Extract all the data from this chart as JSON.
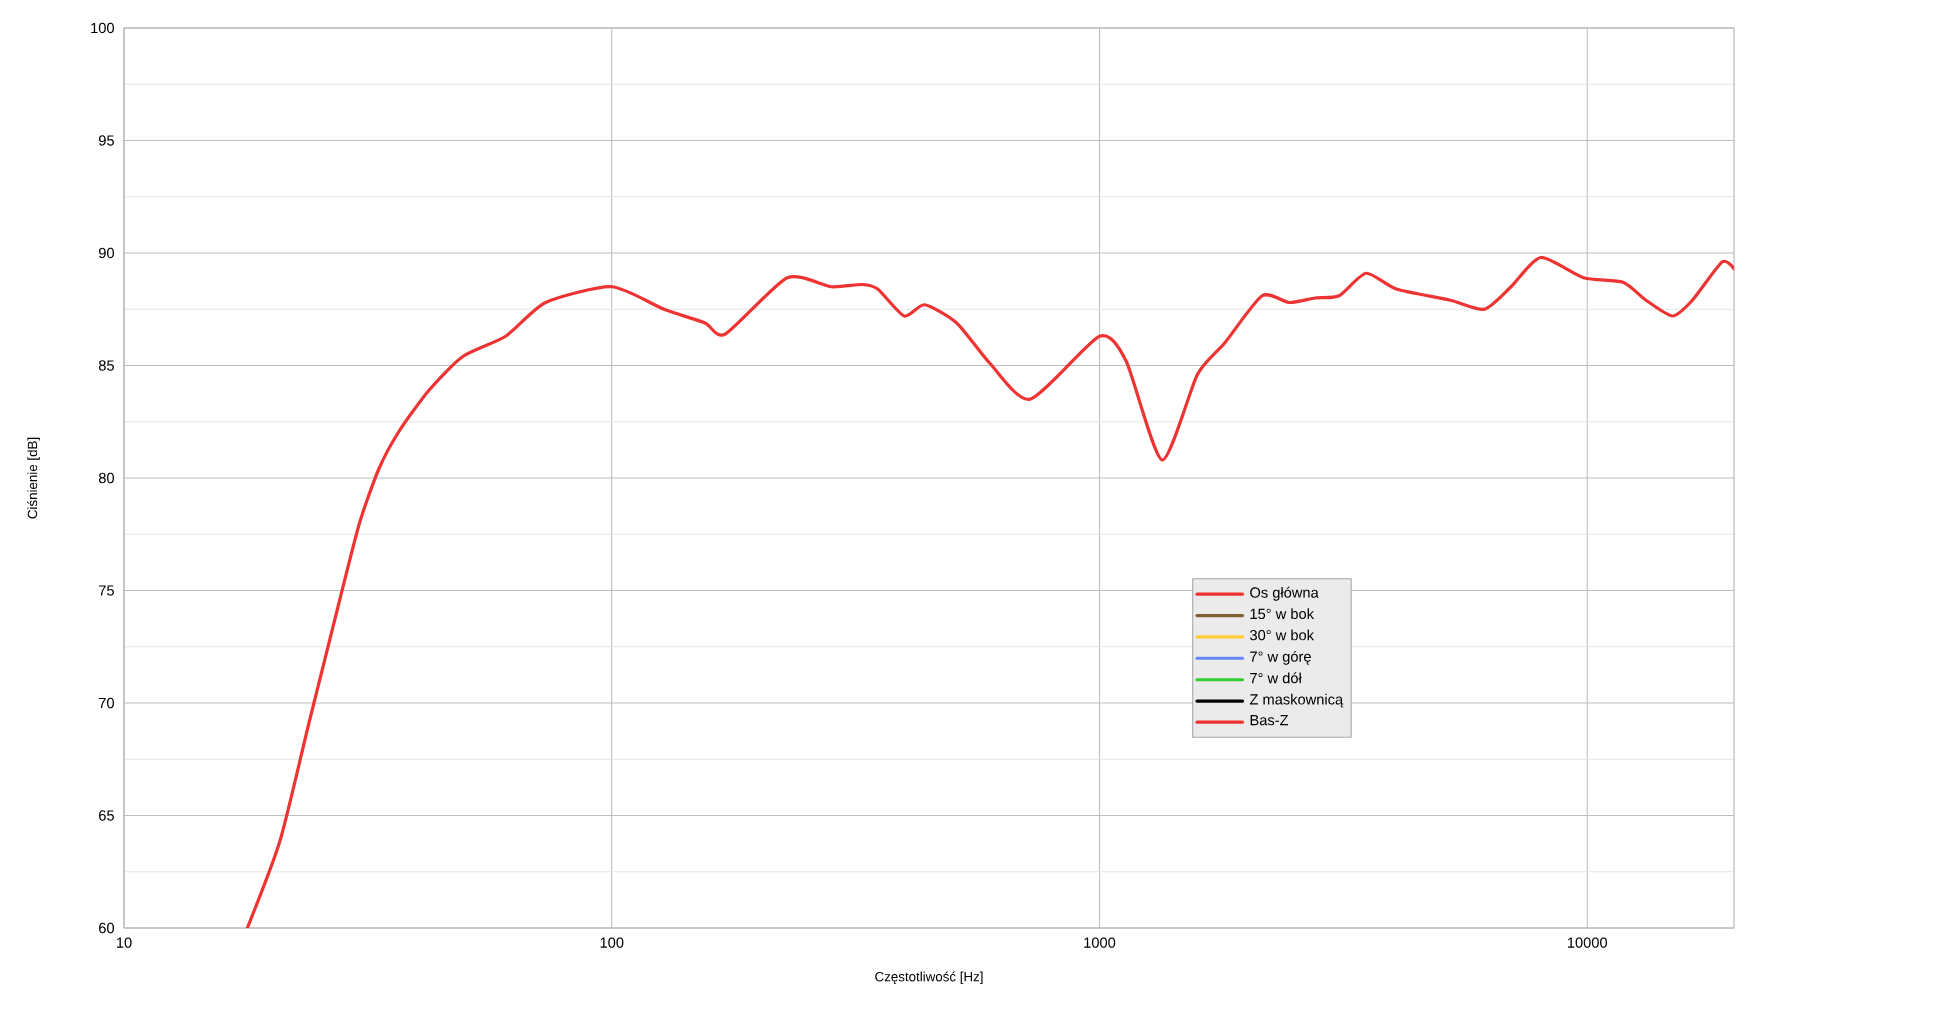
{
  "chart_data": {
    "type": "line",
    "xlabel": "Częstotliwość [Hz]",
    "ylabel": "Ciśnienie [dB]",
    "log": "x",
    "xlim": [
      10,
      20000
    ],
    "ylim": [
      60,
      100
    ],
    "xticks": [
      10,
      100,
      1000,
      10000
    ],
    "yticks": [
      60,
      65,
      70,
      75,
      80,
      85,
      90,
      95,
      100
    ],
    "grid": true,
    "legend": "center right",
    "marker": "none",
    "line_style": "solid",
    "x": [
      17.9,
      20.9,
      24.0,
      27.7,
      30.4,
      33.3,
      36.7,
      42.2,
      49.5,
      60.6,
      73.2,
      100,
      128,
      155,
      171,
      229,
      282,
      326,
      351,
      398,
      438,
      509,
      596,
      721,
      1000,
      1134,
      1344,
      1588,
      1806,
      2155,
      2450,
      2770,
      3100,
      3520,
      4060,
      5240,
      6150,
      6980,
      8030,
      9830,
      11840,
      13200,
      14960,
      16430,
      18900,
      20000
    ],
    "series": [
      {
        "name": "Os główna",
        "color": "#ee3333",
        "values": [
          60,
          63.9,
          69.2,
          74.6,
          78.0,
          80.4,
          82.1,
          83.9,
          85.4,
          86.3,
          87.8,
          88.5,
          87.5,
          86.9,
          86.4,
          88.9,
          88.5,
          88.6,
          88.4,
          87.2,
          87.7,
          86.9,
          85.1,
          83.5,
          86.3,
          85.2,
          80.8,
          84.6,
          86.0,
          88.1,
          87.8,
          88.0,
          88.1,
          89.1,
          88.4,
          87.9,
          87.5,
          88.5,
          89.8,
          88.9,
          88.7,
          87.9,
          87.2,
          87.9,
          89.6,
          89.3
        ]
      },
      {
        "name": "15° w bok",
        "color": "#806030",
        "values": [
          null,
          null,
          null,
          null,
          null,
          null,
          null,
          null,
          null,
          null,
          null,
          null,
          null,
          null,
          null,
          null,
          null,
          null,
          null,
          null,
          null,
          null,
          null,
          null,
          null,
          null,
          null,
          null,
          null,
          null,
          null,
          null,
          null,
          null,
          null,
          null,
          null,
          null,
          null,
          null,
          null,
          null,
          null,
          null,
          null,
          null
        ]
      },
      {
        "name": "30° w bok",
        "color": "#ffcc33",
        "values": [
          null,
          null,
          null,
          null,
          null,
          null,
          null,
          null,
          null,
          null,
          null,
          null,
          null,
          null,
          null,
          null,
          null,
          null,
          null,
          null,
          null,
          null,
          null,
          null,
          null,
          null,
          null,
          null,
          null,
          null,
          null,
          null,
          null,
          null,
          null,
          null,
          null,
          null,
          null,
          null,
          null,
          null,
          null,
          null,
          null,
          null
        ]
      },
      {
        "name": "7° w górę",
        "color": "#6688ff",
        "values": [
          null,
          null,
          null,
          null,
          null,
          null,
          null,
          null,
          null,
          null,
          null,
          null,
          null,
          null,
          null,
          null,
          null,
          null,
          null,
          null,
          null,
          null,
          null,
          null,
          null,
          null,
          null,
          null,
          null,
          null,
          null,
          null,
          null,
          null,
          null,
          null,
          null,
          null,
          null,
          null,
          null,
          null,
          null,
          null,
          null,
          null
        ]
      },
      {
        "name": "7° w dół",
        "color": "#33cc33",
        "values": [
          null,
          null,
          null,
          null,
          null,
          null,
          null,
          null,
          null,
          null,
          null,
          null,
          null,
          null,
          null,
          null,
          null,
          null,
          null,
          null,
          null,
          null,
          null,
          null,
          null,
          null,
          null,
          null,
          null,
          null,
          null,
          null,
          null,
          null,
          null,
          null,
          null,
          null,
          null,
          null,
          null,
          null,
          null,
          null,
          null,
          null
        ]
      },
      {
        "name": "Z maskownicą",
        "color": "#000000",
        "values": [
          null,
          null,
          null,
          null,
          null,
          null,
          null,
          null,
          null,
          null,
          null,
          null,
          null,
          null,
          null,
          null,
          null,
          null,
          null,
          null,
          null,
          null,
          null,
          null,
          null,
          null,
          null,
          null,
          null,
          null,
          null,
          null,
          null,
          null,
          null,
          null,
          null,
          null,
          null,
          null,
          null,
          null,
          null,
          null,
          null,
          null
        ]
      },
      {
        "name": "Bas-Z",
        "color": "#ee3333",
        "values": [
          null,
          null,
          null,
          null,
          null,
          null,
          null,
          null,
          null,
          null,
          null,
          null,
          null,
          null,
          null,
          null,
          null,
          null,
          null,
          null,
          null,
          null,
          null,
          null,
          null,
          null,
          null,
          null,
          null,
          null,
          null,
          null,
          null,
          null,
          null,
          null,
          null,
          null,
          null,
          null,
          null,
          null,
          null,
          null,
          null,
          null
        ]
      }
    ]
  }
}
